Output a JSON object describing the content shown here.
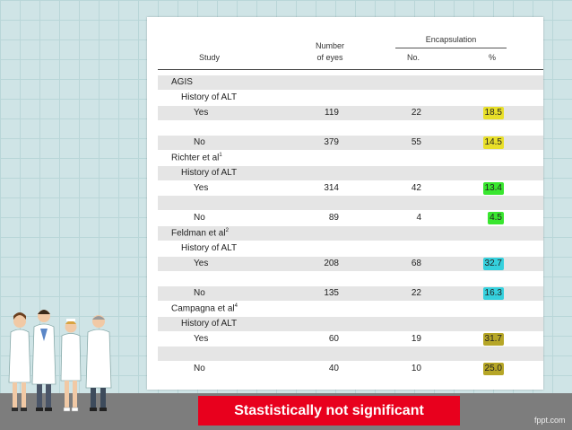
{
  "colors": {
    "agis": "#e8df29",
    "richter": "#39e62f",
    "feldman": "#35d0dd",
    "campagna": "#b6a627",
    "banner": "#e8001d",
    "background": "#cfe4e6",
    "band": "#7d7d7d"
  },
  "table": {
    "headers": {
      "study": "Study",
      "eyes_line1": "Number",
      "eyes_line2": "of eyes",
      "encapsulation": "Encapsulation",
      "no": "No.",
      "pct": "%"
    },
    "rows": [
      {
        "label": "AGIS",
        "level": 0,
        "shaded": true
      },
      {
        "label": "History of ALT",
        "level": 1,
        "shaded": false
      },
      {
        "label": "Yes",
        "level": 2,
        "shaded": true,
        "eyes": "119",
        "no": "22",
        "pct": "18.5",
        "color": "#e8df29"
      },
      {
        "label": "",
        "level": 2,
        "shaded": false
      },
      {
        "label": "No",
        "level": 2,
        "shaded": true,
        "eyes": "379",
        "no": "55",
        "pct": "14.5",
        "color": "#e8df29"
      },
      {
        "label": "Richter et al",
        "sup": "1",
        "level": 0,
        "shaded": false
      },
      {
        "label": "History of ALT",
        "level": 1,
        "shaded": true
      },
      {
        "label": "Yes",
        "level": 2,
        "shaded": false,
        "eyes": "314",
        "no": "42",
        "pct": "13.4",
        "color": "#39e62f"
      },
      {
        "label": "",
        "level": 2,
        "shaded": true
      },
      {
        "label": "No",
        "level": 2,
        "shaded": false,
        "eyes": "89",
        "no": "4",
        "pct": "4.5",
        "color": "#39e62f"
      },
      {
        "label": "Feldman et al",
        "sup": "2",
        "level": 0,
        "shaded": true
      },
      {
        "label": "History of ALT",
        "level": 1,
        "shaded": false
      },
      {
        "label": "Yes",
        "level": 2,
        "shaded": true,
        "eyes": "208",
        "no": "68",
        "pct": "32.7",
        "color": "#35d0dd"
      },
      {
        "label": "",
        "level": 2,
        "shaded": false
      },
      {
        "label": "No",
        "level": 2,
        "shaded": true,
        "eyes": "135",
        "no": "22",
        "pct": "16.3",
        "color": "#35d0dd"
      },
      {
        "label": "Campagna et al",
        "sup": "4",
        "level": 0,
        "shaded": false
      },
      {
        "label": "History of ALT",
        "level": 1,
        "shaded": true
      },
      {
        "label": "Yes",
        "level": 2,
        "shaded": false,
        "eyes": "60",
        "no": "19",
        "pct": "31.7",
        "color": "#b6a627"
      },
      {
        "label": "",
        "level": 2,
        "shaded": true
      },
      {
        "label": "No",
        "level": 2,
        "shaded": false,
        "eyes": "40",
        "no": "10",
        "pct": "25.0",
        "color": "#b6a627"
      }
    ]
  },
  "banner": "Stastistically not significant",
  "watermark": "fppt.com",
  "figures_icon": "medical-staff-illustration"
}
